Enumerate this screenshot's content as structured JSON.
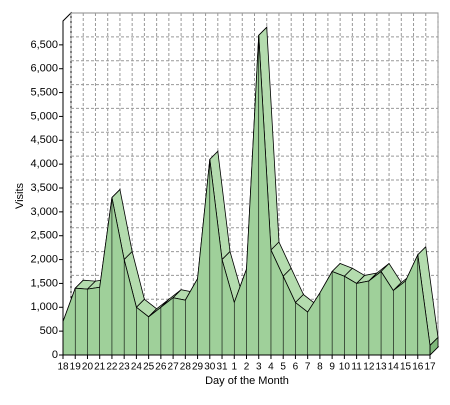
{
  "chart_data": {
    "type": "area3d",
    "xlabel": "Day of the Month",
    "ylabel": "Visits",
    "categories": [
      "18",
      "19",
      "20",
      "21",
      "22",
      "23",
      "24",
      "25",
      "26",
      "27",
      "28",
      "29",
      "30",
      "31",
      "1",
      "2",
      "3",
      "4",
      "5",
      "6",
      "7",
      "8",
      "9",
      "10",
      "11",
      "12",
      "13",
      "14",
      "15",
      "16",
      "17"
    ],
    "values": [
      700,
      1400,
      1380,
      1420,
      3300,
      2000,
      1000,
      800,
      1000,
      1200,
      1150,
      1600,
      4100,
      2000,
      1100,
      1800,
      6700,
      2200,
      1650,
      1100,
      900,
      1300,
      1750,
      1650,
      1500,
      1550,
      1750,
      1350,
      1550,
      2100,
      200
    ],
    "color": "#9fd09a",
    "ylim": [
      0,
      7000
    ],
    "yticks": [
      0,
      500,
      {
        "value": 1000,
        "label": "1,000"
      },
      {
        "value": 1500,
        "label": "1,500"
      },
      {
        "value": 2000,
        "label": "2,000"
      },
      {
        "value": 2500,
        "label": "2,500"
      },
      {
        "value": 3000,
        "label": "3,000"
      },
      {
        "value": 3500,
        "label": "3,500"
      },
      {
        "value": 4000,
        "label": "4,000"
      },
      {
        "value": 4500,
        "label": "4,500"
      },
      {
        "value": 5000,
        "label": "5,000"
      },
      {
        "value": 5500,
        "label": "5,500"
      },
      {
        "value": 6000,
        "label": "6,000"
      },
      {
        "value": 6500,
        "label": "6,500"
      }
    ],
    "grid": true
  }
}
